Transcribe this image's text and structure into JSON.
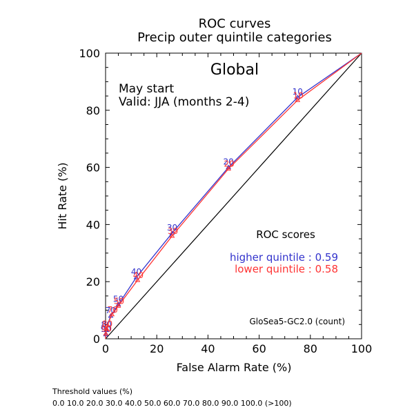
{
  "chart_data": {
    "type": "line",
    "title": "ROC curves",
    "subtitle": "Precip outer quintile categories",
    "xlabel": "False Alarm Rate (%)",
    "ylabel": "Hit Rate (%)",
    "xlim": [
      0,
      100
    ],
    "ylim": [
      0,
      100
    ],
    "xticks": [
      "0",
      "20",
      "40",
      "60",
      "80",
      "100"
    ],
    "yticks": [
      "0",
      "20",
      "40",
      "60",
      "80",
      "100"
    ],
    "grid": false,
    "region": "Global",
    "start_text": "May start",
    "valid_text": "Valid: JJA (months 2-4)",
    "scores_title": "ROC scores",
    "model_label": "GloSea5-GC2.0 (count)",
    "series": [
      {
        "name": "higher quintile",
        "score_text": "higher quintile : 0.59",
        "color": "#3333cc",
        "points": [
          {
            "x": 0,
            "y": 0
          },
          {
            "x": 0,
            "y": 0.5
          },
          {
            "x": 0.1,
            "y": 1.5
          },
          {
            "x": 0.3,
            "y": 3
          },
          {
            "x": 0.8,
            "y": 5
          },
          {
            "x": 2,
            "y": 8
          },
          {
            "x": 5,
            "y": 12
          },
          {
            "x": 12,
            "y": 21.5
          },
          {
            "x": 26,
            "y": 37
          },
          {
            "x": 48,
            "y": 60
          },
          {
            "x": 75,
            "y": 84.5
          },
          {
            "x": 100,
            "y": 100
          }
        ],
        "labels": [
          {
            "x": 0.1,
            "y": 1.5,
            "text": "90"
          },
          {
            "x": 0.3,
            "y": 3,
            "text": "80"
          },
          {
            "x": 2,
            "y": 8,
            "text": "70"
          },
          {
            "x": 5,
            "y": 12,
            "text": "50"
          },
          {
            "x": 12,
            "y": 21.5,
            "text": "40"
          },
          {
            "x": 26,
            "y": 37,
            "text": "30"
          },
          {
            "x": 48,
            "y": 60,
            "text": "20"
          },
          {
            "x": 75,
            "y": 84.5,
            "text": "10"
          }
        ]
      },
      {
        "name": "lower quintile",
        "score_text": "lower quintile : 0.58",
        "color": "#ff3333",
        "points": [
          {
            "x": 0,
            "y": 0
          },
          {
            "x": 0,
            "y": 0.7
          },
          {
            "x": 0.1,
            "y": 1.8
          },
          {
            "x": 0.4,
            "y": 3.5
          },
          {
            "x": 1,
            "y": 5.5
          },
          {
            "x": 2.5,
            "y": 8.5
          },
          {
            "x": 5,
            "y": 11.5
          },
          {
            "x": 12.5,
            "y": 20.5
          },
          {
            "x": 26,
            "y": 36
          },
          {
            "x": 48,
            "y": 59.5
          },
          {
            "x": 75,
            "y": 83.5
          },
          {
            "x": 100,
            "y": 100
          }
        ],
        "labels": [
          {
            "x": 0.1,
            "y": 1.8,
            "text": "90"
          },
          {
            "x": 0.4,
            "y": 3.5,
            "text": "80"
          },
          {
            "x": 2.5,
            "y": 8.5,
            "text": "70"
          },
          {
            "x": 5,
            "y": 11.5,
            "text": "50"
          },
          {
            "x": 12.5,
            "y": 20.5,
            "text": "40"
          },
          {
            "x": 26,
            "y": 36,
            "text": "30"
          },
          {
            "x": 48,
            "y": 59.5,
            "text": "20"
          },
          {
            "x": 75,
            "y": 83.5,
            "text": "10"
          }
        ]
      }
    ]
  },
  "footer": {
    "threshold_title": "Threshold values (%)",
    "threshold_values": "0.0 10.0 20.0 30.0 40.0 50.0 60.0 70.0 80.0 90.0 100.0 (>100)"
  }
}
